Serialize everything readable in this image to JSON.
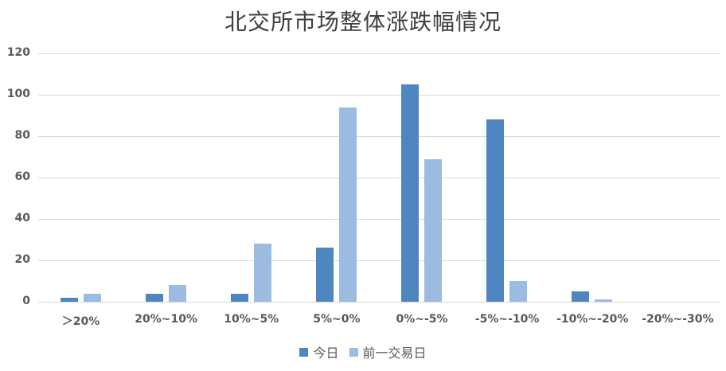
{
  "chart_data": {
    "type": "bar",
    "title": "北交所市场整体涨跌幅情况",
    "xlabel": "",
    "ylabel": "",
    "ylim": [
      0,
      120
    ],
    "yticks": [
      0,
      20,
      40,
      60,
      80,
      100,
      120
    ],
    "grid": true,
    "legend_position": "bottom",
    "categories": [
      "＞20%",
      "20%~10%",
      "10%~5%",
      "5%~0%",
      "0%~-5%",
      "-5%~-10%",
      "-10%~-20%",
      "-20%~-30%"
    ],
    "series": [
      {
        "name": "今日",
        "color": "#4f86c0",
        "values": [
          2,
          4,
          4,
          26,
          105,
          88,
          5,
          0
        ]
      },
      {
        "name": "前一交易日",
        "color": "#9cbbe0",
        "values": [
          4,
          8,
          28,
          94,
          69,
          10,
          1,
          0
        ]
      }
    ]
  }
}
